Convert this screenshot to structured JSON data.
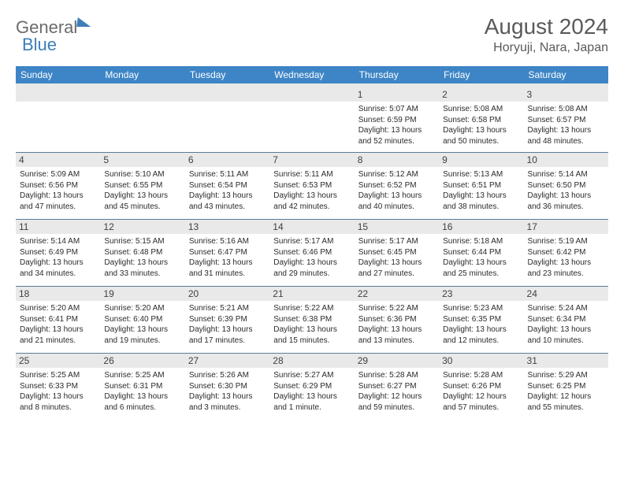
{
  "logo": {
    "part1": "General",
    "part2": "Blue"
  },
  "header": {
    "title": "August 2024",
    "location": "Horyuji, Nara, Japan"
  },
  "weekday_labels": [
    "Sunday",
    "Monday",
    "Tuesday",
    "Wednesday",
    "Thursday",
    "Friday",
    "Saturday"
  ],
  "styling": {
    "header_bg": "#3d85c6",
    "header_text": "#ffffff",
    "daynum_bg": "#e9e9e9",
    "cell_border": "#5a7a9a",
    "title_color": "#5a5a5a",
    "body_text": "#2b2b2b",
    "page_bg": "#ffffff",
    "logo_gray": "#6b6b6b",
    "logo_blue": "#3d7fb8",
    "daynum_fontsize": 12,
    "detail_fontsize": 10,
    "dayhead_fontsize": 12,
    "title_fontsize": 28,
    "location_fontsize": 16
  },
  "weeks": [
    [
      {
        "n": "",
        "sr": "",
        "ss": "",
        "dl": ""
      },
      {
        "n": "",
        "sr": "",
        "ss": "",
        "dl": ""
      },
      {
        "n": "",
        "sr": "",
        "ss": "",
        "dl": ""
      },
      {
        "n": "",
        "sr": "",
        "ss": "",
        "dl": ""
      },
      {
        "n": "1",
        "sr": "Sunrise: 5:07 AM",
        "ss": "Sunset: 6:59 PM",
        "dl": "Daylight: 13 hours and 52 minutes."
      },
      {
        "n": "2",
        "sr": "Sunrise: 5:08 AM",
        "ss": "Sunset: 6:58 PM",
        "dl": "Daylight: 13 hours and 50 minutes."
      },
      {
        "n": "3",
        "sr": "Sunrise: 5:08 AM",
        "ss": "Sunset: 6:57 PM",
        "dl": "Daylight: 13 hours and 48 minutes."
      }
    ],
    [
      {
        "n": "4",
        "sr": "Sunrise: 5:09 AM",
        "ss": "Sunset: 6:56 PM",
        "dl": "Daylight: 13 hours and 47 minutes."
      },
      {
        "n": "5",
        "sr": "Sunrise: 5:10 AM",
        "ss": "Sunset: 6:55 PM",
        "dl": "Daylight: 13 hours and 45 minutes."
      },
      {
        "n": "6",
        "sr": "Sunrise: 5:11 AM",
        "ss": "Sunset: 6:54 PM",
        "dl": "Daylight: 13 hours and 43 minutes."
      },
      {
        "n": "7",
        "sr": "Sunrise: 5:11 AM",
        "ss": "Sunset: 6:53 PM",
        "dl": "Daylight: 13 hours and 42 minutes."
      },
      {
        "n": "8",
        "sr": "Sunrise: 5:12 AM",
        "ss": "Sunset: 6:52 PM",
        "dl": "Daylight: 13 hours and 40 minutes."
      },
      {
        "n": "9",
        "sr": "Sunrise: 5:13 AM",
        "ss": "Sunset: 6:51 PM",
        "dl": "Daylight: 13 hours and 38 minutes."
      },
      {
        "n": "10",
        "sr": "Sunrise: 5:14 AM",
        "ss": "Sunset: 6:50 PM",
        "dl": "Daylight: 13 hours and 36 minutes."
      }
    ],
    [
      {
        "n": "11",
        "sr": "Sunrise: 5:14 AM",
        "ss": "Sunset: 6:49 PM",
        "dl": "Daylight: 13 hours and 34 minutes."
      },
      {
        "n": "12",
        "sr": "Sunrise: 5:15 AM",
        "ss": "Sunset: 6:48 PM",
        "dl": "Daylight: 13 hours and 33 minutes."
      },
      {
        "n": "13",
        "sr": "Sunrise: 5:16 AM",
        "ss": "Sunset: 6:47 PM",
        "dl": "Daylight: 13 hours and 31 minutes."
      },
      {
        "n": "14",
        "sr": "Sunrise: 5:17 AM",
        "ss": "Sunset: 6:46 PM",
        "dl": "Daylight: 13 hours and 29 minutes."
      },
      {
        "n": "15",
        "sr": "Sunrise: 5:17 AM",
        "ss": "Sunset: 6:45 PM",
        "dl": "Daylight: 13 hours and 27 minutes."
      },
      {
        "n": "16",
        "sr": "Sunrise: 5:18 AM",
        "ss": "Sunset: 6:44 PM",
        "dl": "Daylight: 13 hours and 25 minutes."
      },
      {
        "n": "17",
        "sr": "Sunrise: 5:19 AM",
        "ss": "Sunset: 6:42 PM",
        "dl": "Daylight: 13 hours and 23 minutes."
      }
    ],
    [
      {
        "n": "18",
        "sr": "Sunrise: 5:20 AM",
        "ss": "Sunset: 6:41 PM",
        "dl": "Daylight: 13 hours and 21 minutes."
      },
      {
        "n": "19",
        "sr": "Sunrise: 5:20 AM",
        "ss": "Sunset: 6:40 PM",
        "dl": "Daylight: 13 hours and 19 minutes."
      },
      {
        "n": "20",
        "sr": "Sunrise: 5:21 AM",
        "ss": "Sunset: 6:39 PM",
        "dl": "Daylight: 13 hours and 17 minutes."
      },
      {
        "n": "21",
        "sr": "Sunrise: 5:22 AM",
        "ss": "Sunset: 6:38 PM",
        "dl": "Daylight: 13 hours and 15 minutes."
      },
      {
        "n": "22",
        "sr": "Sunrise: 5:22 AM",
        "ss": "Sunset: 6:36 PM",
        "dl": "Daylight: 13 hours and 13 minutes."
      },
      {
        "n": "23",
        "sr": "Sunrise: 5:23 AM",
        "ss": "Sunset: 6:35 PM",
        "dl": "Daylight: 13 hours and 12 minutes."
      },
      {
        "n": "24",
        "sr": "Sunrise: 5:24 AM",
        "ss": "Sunset: 6:34 PM",
        "dl": "Daylight: 13 hours and 10 minutes."
      }
    ],
    [
      {
        "n": "25",
        "sr": "Sunrise: 5:25 AM",
        "ss": "Sunset: 6:33 PM",
        "dl": "Daylight: 13 hours and 8 minutes."
      },
      {
        "n": "26",
        "sr": "Sunrise: 5:25 AM",
        "ss": "Sunset: 6:31 PM",
        "dl": "Daylight: 13 hours and 6 minutes."
      },
      {
        "n": "27",
        "sr": "Sunrise: 5:26 AM",
        "ss": "Sunset: 6:30 PM",
        "dl": "Daylight: 13 hours and 3 minutes."
      },
      {
        "n": "28",
        "sr": "Sunrise: 5:27 AM",
        "ss": "Sunset: 6:29 PM",
        "dl": "Daylight: 13 hours and 1 minute."
      },
      {
        "n": "29",
        "sr": "Sunrise: 5:28 AM",
        "ss": "Sunset: 6:27 PM",
        "dl": "Daylight: 12 hours and 59 minutes."
      },
      {
        "n": "30",
        "sr": "Sunrise: 5:28 AM",
        "ss": "Sunset: 6:26 PM",
        "dl": "Daylight: 12 hours and 57 minutes."
      },
      {
        "n": "31",
        "sr": "Sunrise: 5:29 AM",
        "ss": "Sunset: 6:25 PM",
        "dl": "Daylight: 12 hours and 55 minutes."
      }
    ]
  ]
}
